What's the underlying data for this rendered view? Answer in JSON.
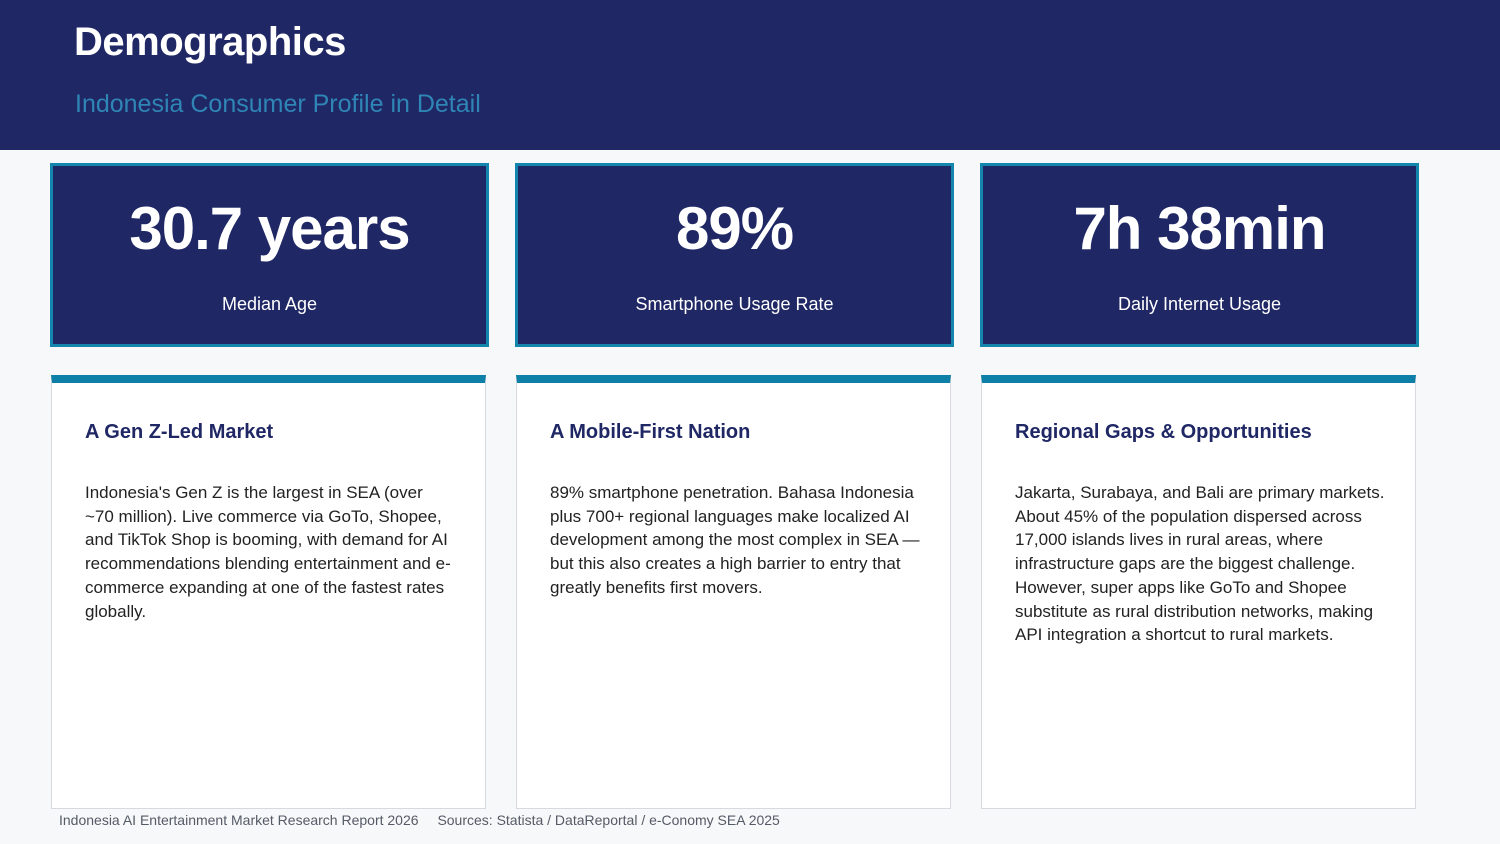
{
  "header": {
    "title": "Demographics",
    "subtitle": "Indonesia Consumer Profile in Detail"
  },
  "stats": [
    {
      "value": "30.7 years",
      "label": "Median Age"
    },
    {
      "value": "89%",
      "label": "Smartphone Usage Rate"
    },
    {
      "value": "7h 38min",
      "label": "Daily Internet Usage"
    }
  ],
  "cards": [
    {
      "title": "A Gen Z-Led Market",
      "body": "Indonesia's Gen Z is the largest in SEA (over ~70 million). Live commerce via GoTo, Shopee, and TikTok Shop is booming, with demand for AI recommendations blending entertainment and e-commerce expanding at one of the fastest rates globally."
    },
    {
      "title": "A Mobile-First Nation",
      "body": "89% smartphone penetration. Bahasa Indonesia plus 700+ regional languages make localized AI development among the most complex in SEA — but this also creates a high barrier to entry that greatly benefits first movers."
    },
    {
      "title": "Regional Gaps & Opportunities",
      "body": "Jakarta, Surabaya, and Bali are primary markets. About 45% of the population dispersed across 17,000 islands lives in rural areas, where infrastructure gaps are the biggest challenge. However, super apps like GoTo and Shopee substitute as rural distribution networks, making API integration a shortcut to rural markets."
    }
  ],
  "footer": {
    "report": "Indonesia AI Entertainment Market Research Report 2026",
    "sources": "Sources: Statista / DataReportal / e-Conomy SEA 2025"
  },
  "colors": {
    "navy": "#1f2765",
    "accent": "#0e7fa7",
    "subtitle": "#2f86b5"
  }
}
